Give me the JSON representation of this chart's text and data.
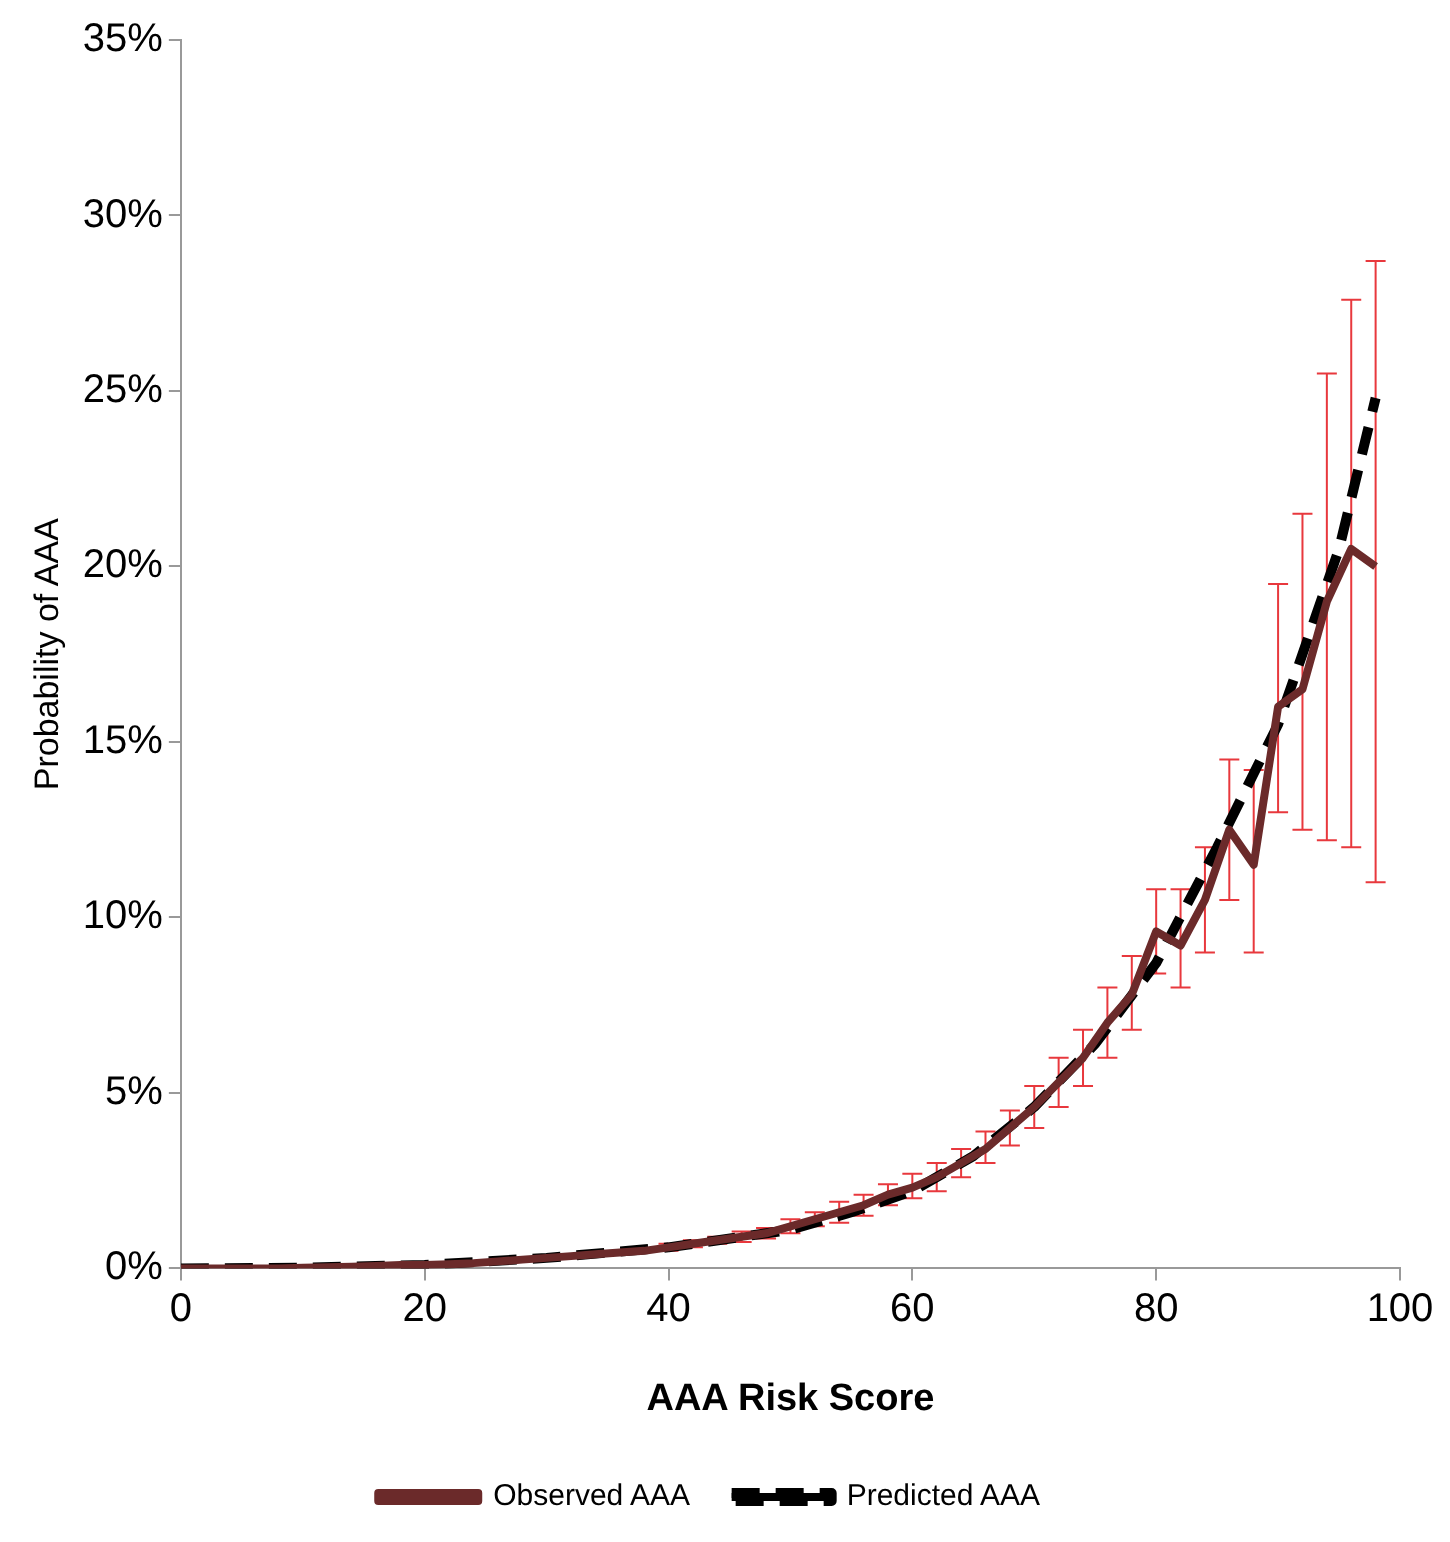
{
  "chart_data": {
    "type": "line",
    "xlabel": "AAA Risk Score",
    "ylabel": "Probability of AAA",
    "xlim": [
      0,
      100
    ],
    "xticks": [
      0,
      20,
      40,
      60,
      80,
      100
    ],
    "ylim": [
      0,
      35
    ],
    "yticks": [
      {
        "value": 0,
        "label": "0%"
      },
      {
        "value": 5,
        "label": "5%"
      },
      {
        "value": 10,
        "label": "10%"
      },
      {
        "value": 15,
        "label": "15%"
      },
      {
        "value": 20,
        "label": "20%"
      },
      {
        "value": 25,
        "label": "25%"
      },
      {
        "value": 30,
        "label": "30%"
      },
      {
        "value": 35,
        "label": "35%"
      }
    ],
    "grid": false,
    "legend": "bottom",
    "marker": "none",
    "series": [
      {
        "name": "Observed AAA",
        "color": "#6b2a2a",
        "line_style": "solid",
        "x": [
          0,
          2,
          4,
          6,
          8,
          10,
          12,
          14,
          16,
          18,
          20,
          22,
          24,
          26,
          28,
          30,
          32,
          34,
          36,
          38,
          40,
          42,
          44,
          46,
          48,
          50,
          52,
          54,
          56,
          58,
          60,
          62,
          64,
          66,
          68,
          70,
          72,
          74,
          76,
          78,
          80,
          82,
          84,
          86,
          88,
          90,
          92,
          94,
          96,
          98
        ],
        "values": [
          0,
          0,
          0,
          0,
          0,
          0.02,
          0.03,
          0.05,
          0.07,
          0.1,
          0.1,
          0.12,
          0.15,
          0.2,
          0.25,
          0.3,
          0.35,
          0.4,
          0.45,
          0.5,
          0.6,
          0.7,
          0.8,
          0.9,
          1.0,
          1.2,
          1.4,
          1.6,
          1.8,
          2.1,
          2.3,
          2.6,
          3.0,
          3.4,
          4.0,
          4.6,
          5.3,
          6.0,
          7.0,
          7.8,
          9.6,
          9.2,
          10.5,
          12.5,
          11.5,
          16.0,
          16.5,
          19.0,
          20.5,
          20.0
        ],
        "errors": [
          null,
          null,
          null,
          null,
          null,
          null,
          null,
          null,
          null,
          null,
          null,
          null,
          null,
          null,
          null,
          null,
          null,
          null,
          null,
          null,
          [
            0.5,
            0.7
          ],
          [
            0.6,
            0.8
          ],
          [
            0.7,
            0.9
          ],
          [
            0.75,
            1.05
          ],
          [
            0.85,
            1.15
          ],
          [
            1.0,
            1.4
          ],
          [
            1.2,
            1.6
          ],
          [
            1.3,
            1.9
          ],
          [
            1.5,
            2.1
          ],
          [
            1.8,
            2.4
          ],
          [
            2.0,
            2.7
          ],
          [
            2.2,
            3.0
          ],
          [
            2.6,
            3.4
          ],
          [
            3.0,
            3.9
          ],
          [
            3.5,
            4.5
          ],
          [
            4.0,
            5.2
          ],
          [
            4.6,
            6.0
          ],
          [
            5.2,
            6.8
          ],
          [
            6.0,
            8.0
          ],
          [
            6.8,
            8.9
          ],
          [
            8.4,
            10.8
          ],
          [
            8.0,
            10.8
          ],
          [
            9.0,
            12.0
          ],
          [
            10.5,
            14.5
          ],
          [
            9.0,
            14.2
          ],
          [
            13.0,
            19.5
          ],
          [
            12.5,
            21.5
          ],
          [
            12.2,
            25.5
          ],
          [
            12.0,
            27.6
          ],
          [
            11.0,
            28.7
          ]
        ]
      },
      {
        "name": "Predicted AAA",
        "color": "#000000",
        "line_style": "dashed",
        "x": [
          0,
          10,
          20,
          30,
          40,
          50,
          55,
          60,
          65,
          70,
          75,
          80,
          85,
          90,
          95,
          98
        ],
        "values": [
          0,
          0.02,
          0.1,
          0.3,
          0.6,
          1.1,
          1.6,
          2.2,
          3.2,
          4.6,
          6.4,
          8.7,
          12.0,
          15.5,
          20.5,
          24.8
        ]
      }
    ]
  }
}
